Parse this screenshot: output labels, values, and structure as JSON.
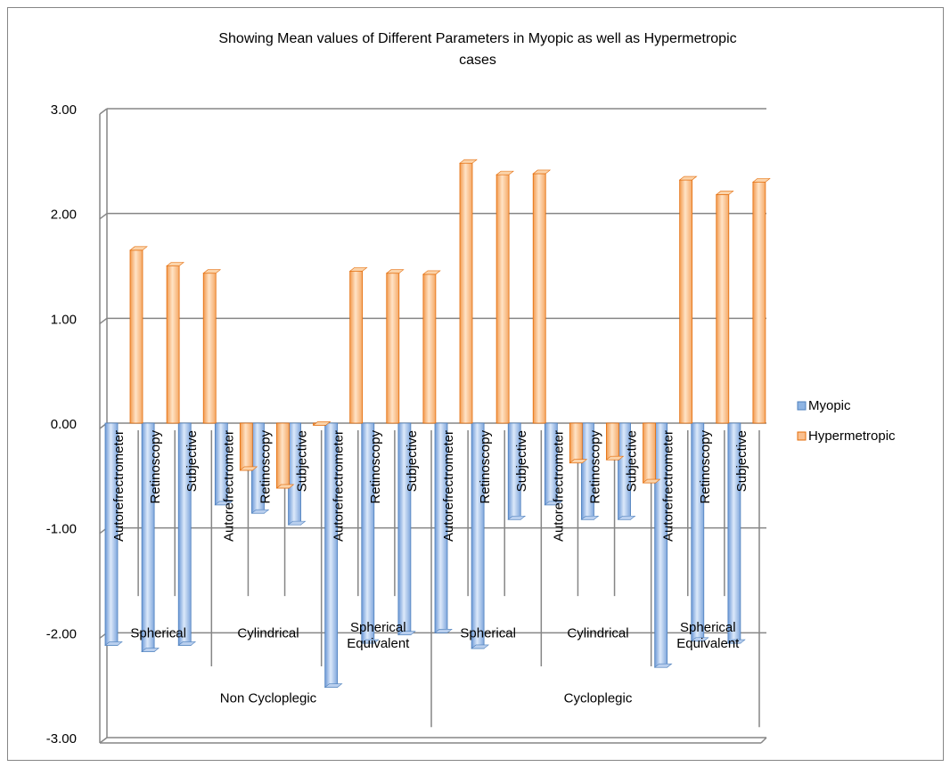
{
  "chart_data": {
    "type": "bar",
    "title": "Showing Mean values of Different Parameters in Myopic as well as Hypermetropic cases",
    "title_lines": [
      "Showing Mean values of Different Parameters in Myopic as well as Hypermetropic",
      "cases"
    ],
    "ylim": [
      -3,
      3
    ],
    "yticks": [
      "3.00",
      "2.00",
      "1.00",
      "0.00",
      "-1.00",
      "-2.00",
      "-3.00"
    ],
    "ytick_values": [
      3,
      2,
      1,
      0,
      -1,
      -2,
      -3
    ],
    "groups": [
      {
        "label": "Non Cycloplegic",
        "subgroups": [
          {
            "label": "Spherical",
            "label_lines": [
              "Spherical"
            ]
          },
          {
            "label": "Cylindrical",
            "label_lines": [
              "Cylindrical"
            ]
          },
          {
            "label": "Spherical Equivalent",
            "label_lines": [
              "Spherical",
              "Equivalent"
            ]
          }
        ]
      },
      {
        "label": "Cycloplegic",
        "subgroups": [
          {
            "label": "Spherical",
            "label_lines": [
              "Spherical"
            ]
          },
          {
            "label": "Cylindrical",
            "label_lines": [
              "Cylindrical"
            ]
          },
          {
            "label": "Spherical Equivalent",
            "label_lines": [
              "Spherical",
              "Equivalent"
            ]
          }
        ]
      }
    ],
    "categories": [
      "Autorefrectrometer",
      "Retinoscopy",
      "Subjective",
      "Autorefrectrometer",
      "Retinoscopy",
      "Subjective",
      "Autorefrectrometer",
      "Retinoscopy",
      "Subjective",
      "Autorefrectrometer",
      "Retinoscopy",
      "Subjective",
      "Autorefrectrometer",
      "Retinoscopy",
      "Subjective",
      "Autorefrectrometer",
      "Retinoscopy",
      "Subjective"
    ],
    "series": [
      {
        "name": "Myopic",
        "color": "#8EB4E3",
        "values": [
          -2.12,
          -2.18,
          -2.12,
          -0.78,
          -0.86,
          -0.97,
          -2.52,
          -2.1,
          -2.02,
          -2.0,
          -2.15,
          -0.92,
          -0.78,
          -0.92,
          -0.92,
          -2.33,
          -2.08,
          -2.1
        ]
      },
      {
        "name": "Hypermetropic",
        "color": "#FAC08F",
        "values": [
          1.65,
          1.5,
          1.43,
          -0.45,
          -0.62,
          -0.02,
          1.45,
          1.43,
          1.42,
          2.48,
          2.37,
          2.38,
          -0.38,
          -0.35,
          -0.57,
          2.32,
          2.18,
          2.3
        ]
      }
    ],
    "legend_position": "right",
    "grid": true
  }
}
